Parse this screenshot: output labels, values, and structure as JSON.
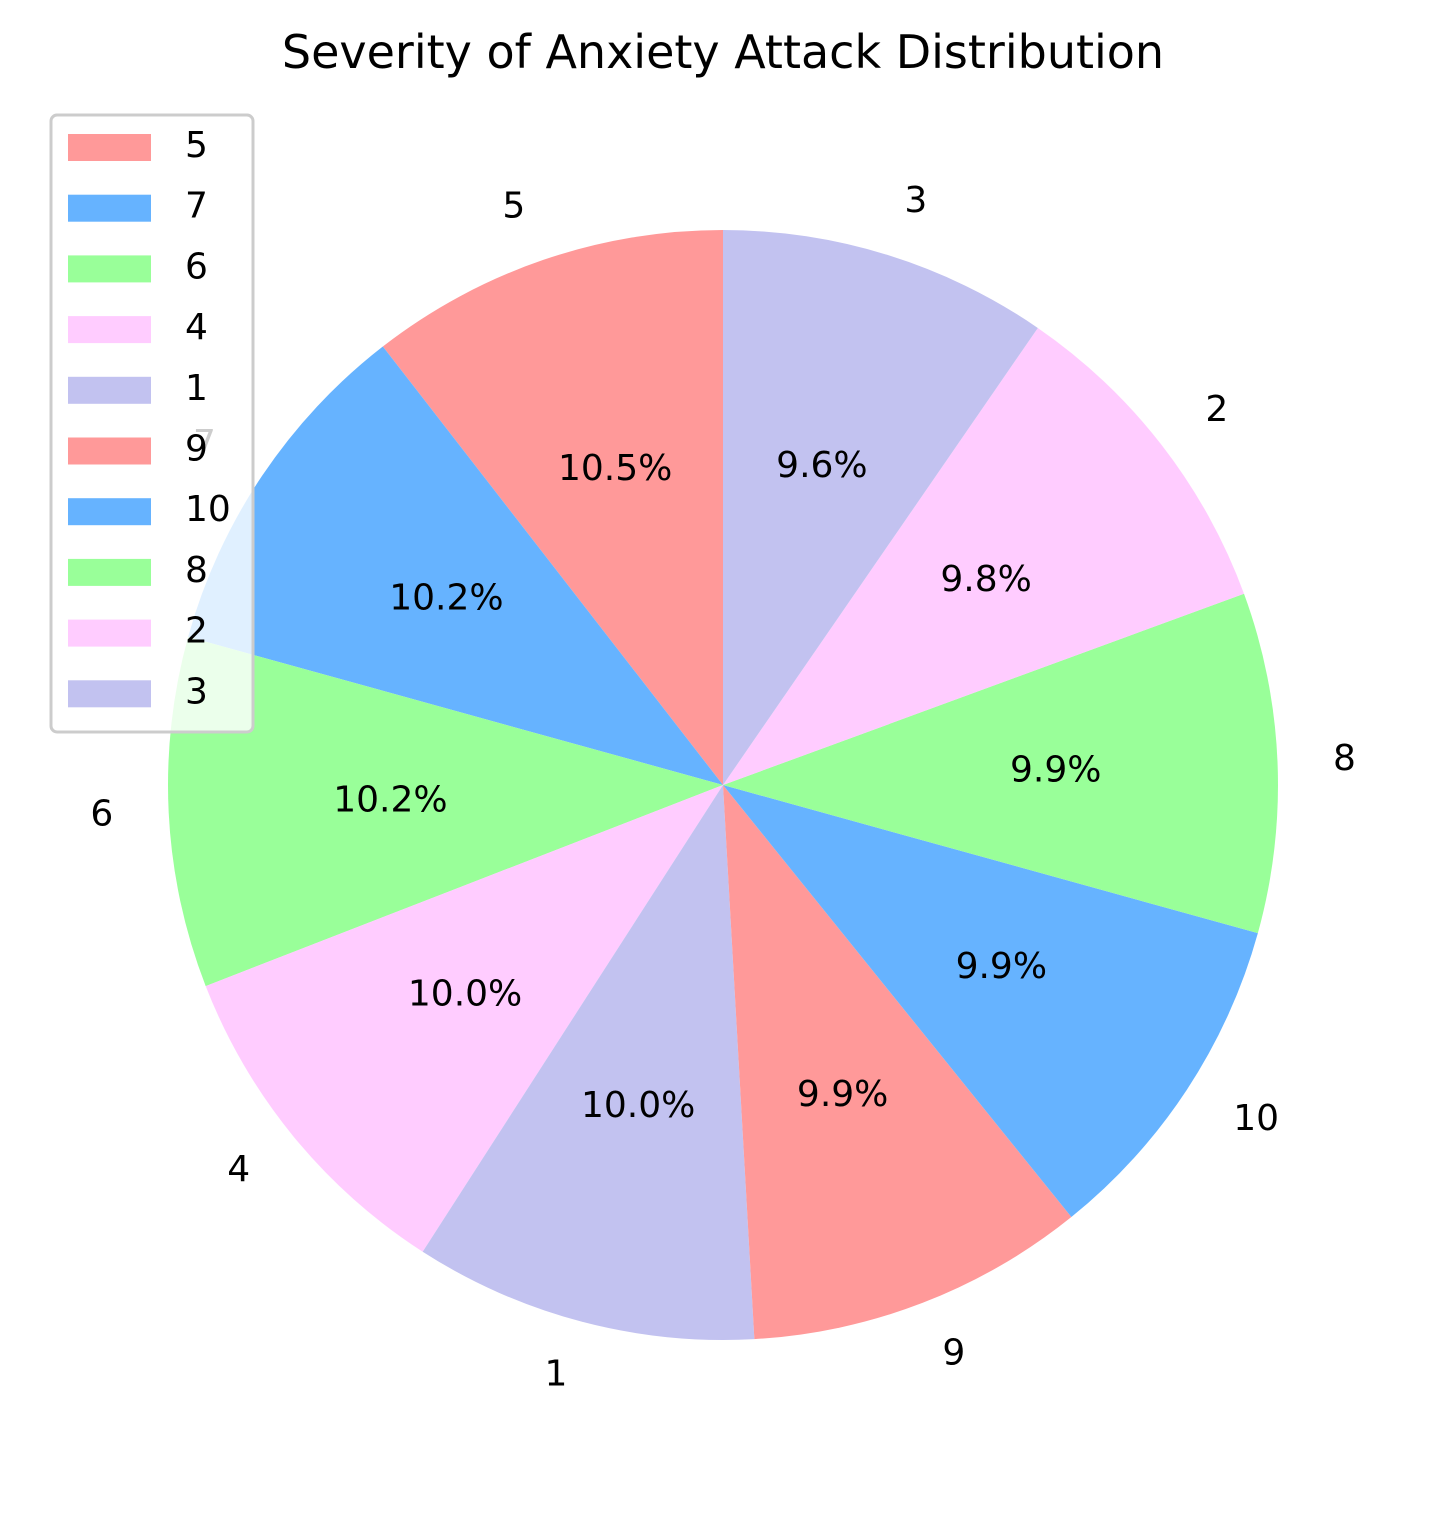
{
  "chart_data": {
    "type": "pie",
    "title": "Severity of Anxiety Attack Distribution",
    "start_angle_deg": 90,
    "direction": "counterclockwise",
    "labels": [
      "5",
      "7",
      "6",
      "4",
      "1",
      "9",
      "10",
      "8",
      "2",
      "3"
    ],
    "values": [
      10.5,
      10.2,
      10.2,
      10.0,
      10.0,
      9.9,
      9.9,
      9.9,
      9.8,
      9.6
    ],
    "percent_labels": [
      "10.5%",
      "10.2%",
      "10.2%",
      "10.0%",
      "10.0%",
      "9.9%",
      "9.9%",
      "9.9%",
      "9.8%",
      "9.6%"
    ],
    "colors": [
      "#ff9999",
      "#66b3ff",
      "#99ff99",
      "#ffccff",
      "#c2c2f0",
      "#ff9999",
      "#66b3ff",
      "#99ff99",
      "#ffccff",
      "#c2c2f0"
    ],
    "legend": {
      "placement": "upper-left",
      "entries": [
        "5",
        "7",
        "6",
        "4",
        "1",
        "9",
        "10",
        "8",
        "2",
        "3"
      ]
    }
  }
}
